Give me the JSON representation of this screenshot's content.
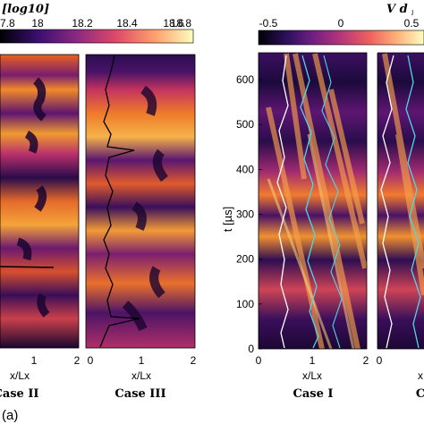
{
  "colorbar_left": {
    "label": "[log10]",
    "ticks": [
      "7.8",
      "18",
      "18.2",
      "18.4",
      "18.6",
      "18.8"
    ],
    "colors": [
      "#000004",
      "#3b0f70",
      "#8c2981",
      "#de4968",
      "#fe9f6d",
      "#fcfdbf"
    ]
  },
  "colorbar_right": {
    "label": "V d",
    "label_sub": "i",
    "ticks": [
      "-0.5",
      "0",
      "0.5"
    ],
    "colors": [
      "#000004",
      "#2c105c",
      "#711f81",
      "#b63679",
      "#ee605e",
      "#fdae78",
      "#fcfdbf"
    ]
  },
  "panels_left": [
    {
      "caption": "Case II",
      "xlabel": "x/Lx",
      "xticks": [
        "1",
        "2"
      ]
    },
    {
      "caption": "Case III",
      "xlabel": "x/Lx",
      "xticks": [
        "0",
        "1",
        "2"
      ]
    }
  ],
  "panels_right": [
    {
      "caption": "Case I",
      "xlabel": "x/Lx",
      "xticks": [
        "0",
        "1",
        "2"
      ]
    },
    {
      "caption": "C",
      "xlabel": "x",
      "xticks": [
        "0"
      ]
    }
  ],
  "yaxis_right": {
    "label": "t [µs]",
    "ticks": [
      "0",
      "100",
      "200",
      "300",
      "400",
      "500",
      "600"
    ],
    "range": [
      0,
      660
    ]
  },
  "figure_label": "(a)"
}
